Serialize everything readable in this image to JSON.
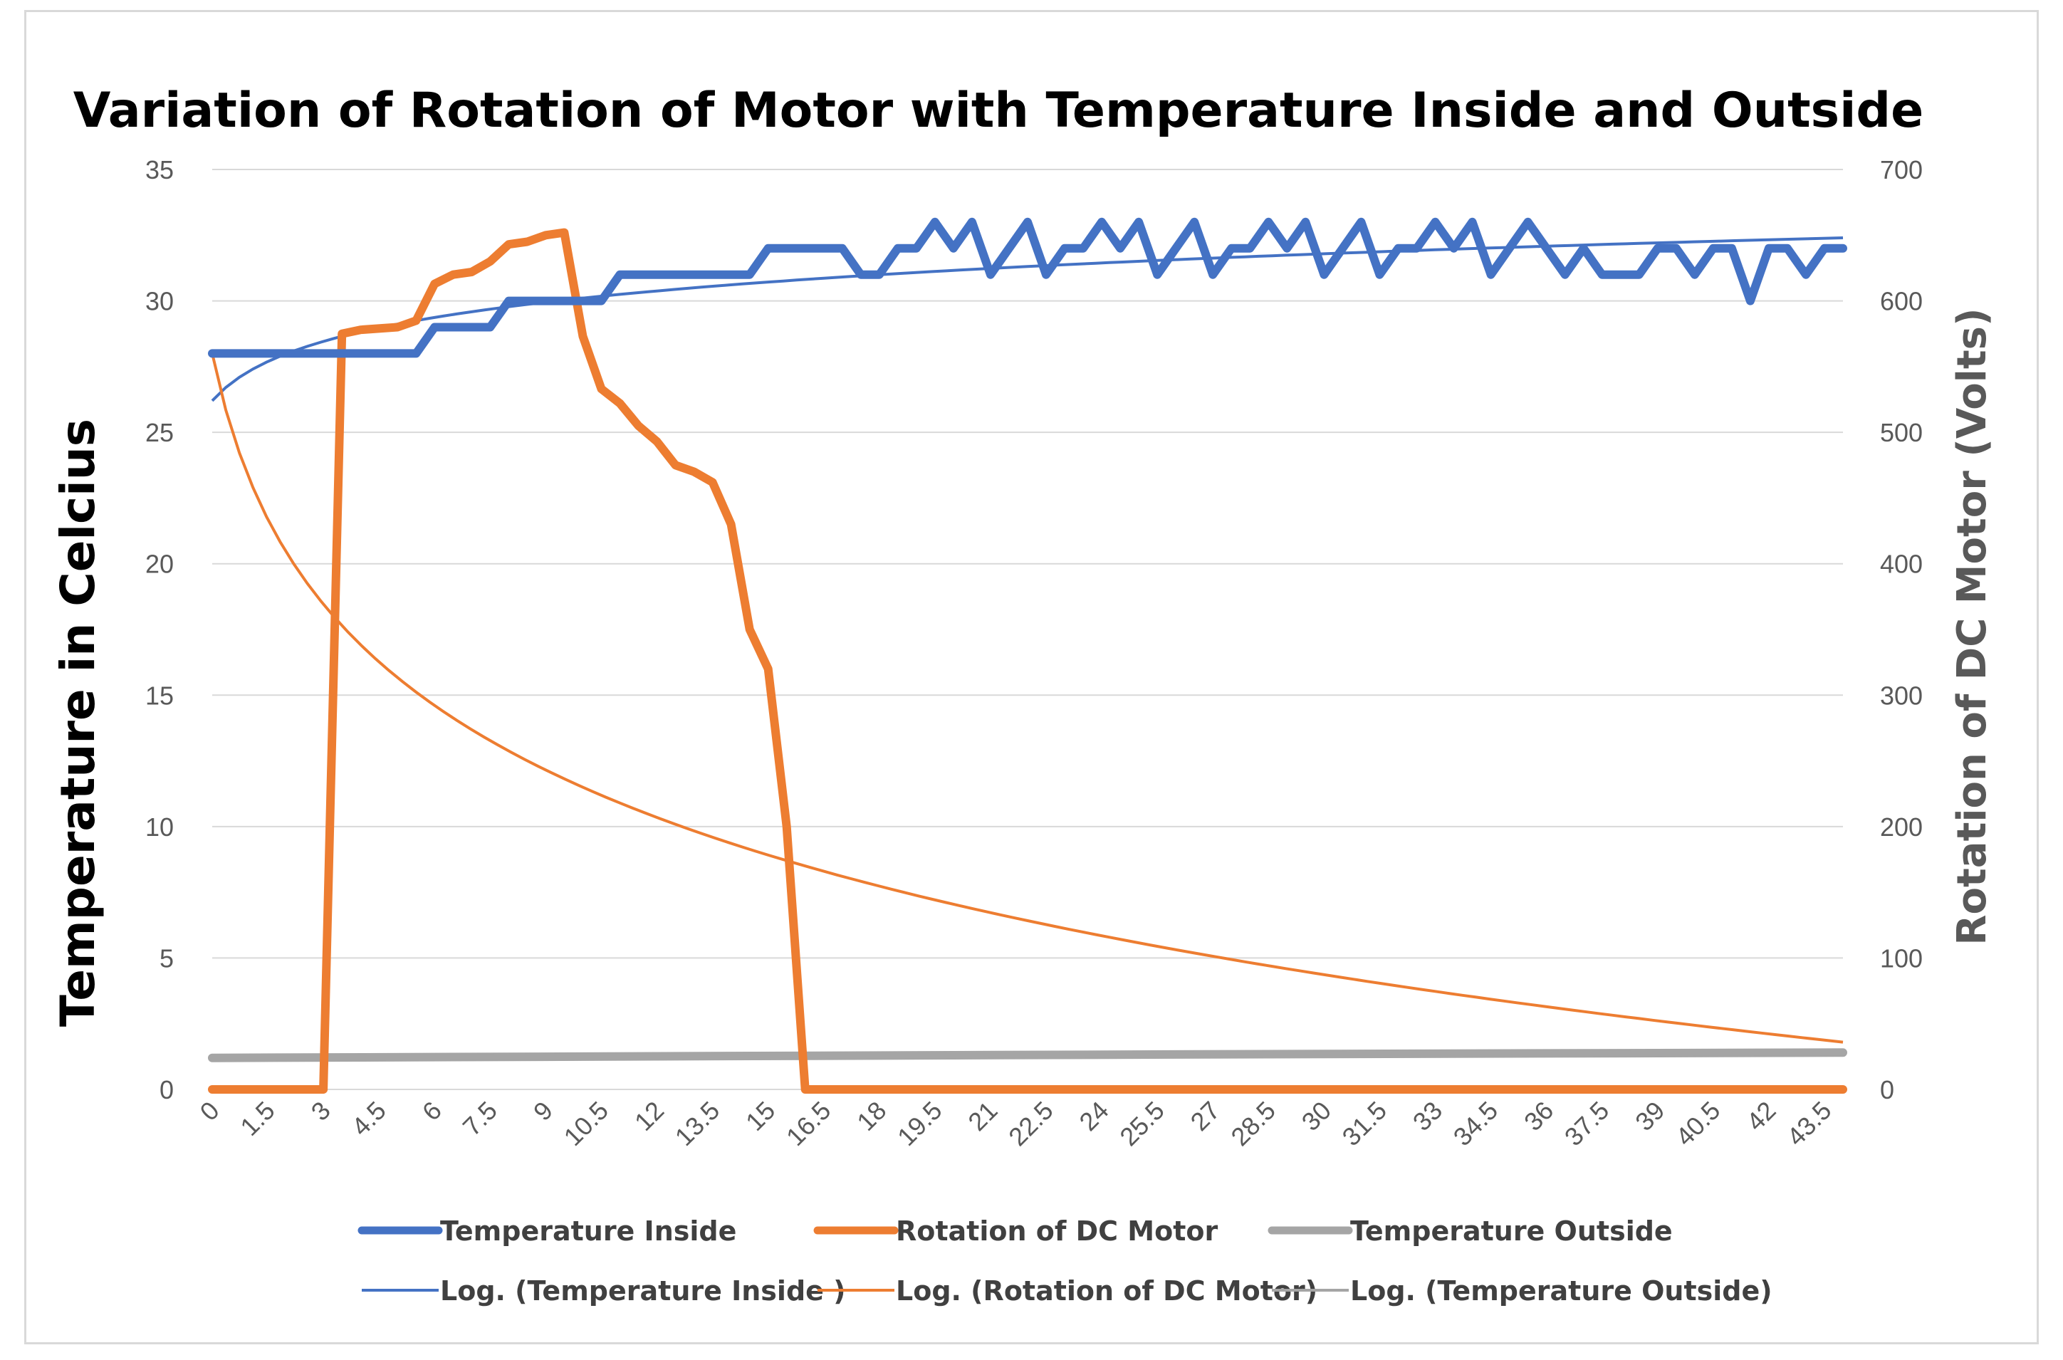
{
  "chart_data": {
    "type": "line",
    "title": "Variation of Rotation of Motor with Temperature Inside and Outside",
    "xlabel": "",
    "ylabel": "Temperature in Celcius",
    "y2label": "Rotation of DC Motor (Volts)",
    "xlim": [
      0,
      44
    ],
    "ylim": [
      0,
      35
    ],
    "y2lim": [
      0,
      700
    ],
    "grid": true,
    "legend_position": "bottom",
    "x_tick_labels": [
      "0",
      "1.5",
      "3",
      "4.5",
      "6",
      "7.5",
      "9",
      "10.5",
      "12",
      "13.5",
      "15",
      "16.5",
      "18",
      "19.5",
      "21",
      "22.5",
      "24",
      "25.5",
      "27",
      "28.5",
      "30",
      "31.5",
      "33",
      "34.5",
      "36",
      "37.5",
      "39",
      "40.5",
      "42",
      "43.5"
    ],
    "y_tick_labels": [
      "0",
      "5",
      "10",
      "15",
      "20",
      "25",
      "30",
      "35"
    ],
    "y2_tick_labels": [
      "0",
      "100",
      "200",
      "300",
      "400",
      "500",
      "600",
      "700"
    ],
    "colors": {
      "inside": "#4472c4",
      "rotation": "#ed7d31",
      "outside": "#a5a5a5"
    },
    "series": [
      {
        "name": "Temperature Inside",
        "axis": "left",
        "color": "#4472c4",
        "x": [
          0,
          5.5,
          6,
          7.5,
          8,
          10.5,
          11,
          14.5,
          15,
          17,
          17.5,
          18,
          18.5,
          19,
          19.5,
          20,
          20.5,
          21,
          21.5,
          22,
          22.5,
          23,
          23.5,
          24,
          24.5,
          25,
          25.5,
          26,
          26.5,
          27,
          27.5,
          28,
          28.5,
          29,
          29.5,
          30,
          30.5,
          31,
          31.5,
          32,
          32.5,
          33,
          33.5,
          34,
          34.5,
          35,
          35.5,
          36,
          36.5,
          37,
          37.5,
          38,
          38.5,
          39,
          39.5,
          40,
          40.5,
          41,
          41.5,
          42,
          42.5,
          43,
          43.5,
          44
        ],
        "values": [
          28,
          28,
          29,
          29,
          30,
          30,
          31,
          31,
          32,
          32,
          31,
          31,
          32,
          32,
          33,
          32,
          33,
          31,
          32,
          33,
          31,
          32,
          32,
          33,
          32,
          33,
          31,
          32,
          33,
          31,
          32,
          32,
          33,
          32,
          33,
          31,
          32,
          33,
          31,
          32,
          32,
          33,
          32,
          33,
          31,
          32,
          33,
          32,
          31,
          32,
          31,
          31,
          31,
          32,
          32,
          31,
          32,
          32,
          30,
          32,
          32,
          31,
          32,
          32
        ]
      },
      {
        "name": "Rotation of DC Motor",
        "axis": "right",
        "color": "#ed7d31",
        "x": [
          0,
          3,
          3.5,
          4,
          5,
          5.5,
          6,
          6.5,
          7,
          7.5,
          8,
          8.5,
          9,
          9.5,
          10,
          10.5,
          11,
          11.5,
          12,
          12.5,
          13,
          13.5,
          14,
          14.5,
          15,
          15.5,
          16,
          16.5,
          44
        ],
        "values": [
          0,
          0,
          575,
          578,
          580,
          585,
          613,
          620,
          622,
          630,
          643,
          645,
          650,
          652,
          573,
          533,
          522,
          505,
          493,
          475,
          470,
          462,
          430,
          350,
          320,
          200,
          0,
          0,
          0
        ]
      },
      {
        "name": "Temperature Outside",
        "axis": "left",
        "color": "#a5a5a5",
        "x": [
          0,
          10,
          20,
          30,
          44
        ],
        "values": [
          1.2,
          1.25,
          1.3,
          1.35,
          1.4
        ]
      },
      {
        "name": "Log. (Temperature Inside )",
        "axis": "left",
        "color": "#4472c4",
        "trendline": "log",
        "x_range": [
          0,
          44
        ],
        "endpoints": [
          26.2,
          32.4
        ]
      },
      {
        "name": "Log. (Rotation of DC Motor)",
        "axis": "right",
        "color": "#ed7d31",
        "trendline": "log",
        "x_range": [
          0,
          44
        ],
        "endpoints": [
          560,
          36
        ]
      },
      {
        "name": "Log. (Temperature Outside)",
        "axis": "left",
        "color": "#a5a5a5",
        "trendline": "log",
        "x_range": [
          0,
          44
        ],
        "endpoints": [
          1.2,
          1.4
        ]
      }
    ]
  }
}
